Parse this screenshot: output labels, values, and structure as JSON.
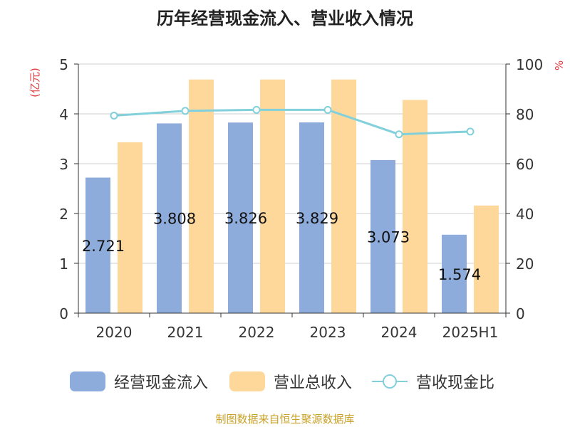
{
  "title": "历年经营现金流入、营业收入情况",
  "source": "制图数据来自恒生聚源数据库",
  "colors": {
    "bar1": "#8eacdb",
    "bar2": "#fdd89a",
    "line": "#82d0dc",
    "left_unit": "#e03c3c",
    "right_unit": "#e03c3c",
    "source": "#c9a227"
  },
  "legend": [
    "经营现金流入",
    "营业总收入",
    "营收现金比"
  ],
  "chart_data": {
    "type": "bar",
    "categories": [
      "2020",
      "2021",
      "2022",
      "2023",
      "2024",
      "2025H1"
    ],
    "series": [
      {
        "name": "经营现金流入",
        "type": "bar",
        "axis": "left",
        "values": [
          2.721,
          3.808,
          3.826,
          3.829,
          3.073,
          1.574
        ],
        "labels": [
          "2.721",
          "3.808",
          "3.826",
          "3.829",
          "3.073",
          "1.574"
        ]
      },
      {
        "name": "营业总收入",
        "type": "bar",
        "axis": "left",
        "values": [
          3.43,
          4.69,
          4.69,
          4.69,
          4.28,
          2.16
        ]
      },
      {
        "name": "营收现金比",
        "type": "line",
        "axis": "right",
        "values": [
          79.3,
          81.2,
          81.6,
          81.6,
          71.8,
          72.9
        ]
      }
    ],
    "left_axis": {
      "label": "(亿元)",
      "ylim": [
        0,
        5
      ],
      "ticks": [
        "0",
        "1",
        "2",
        "3",
        "4",
        "5"
      ]
    },
    "right_axis": {
      "label": "%",
      "ylim": [
        0,
        100
      ],
      "ticks": [
        "0",
        "20",
        "40",
        "60",
        "80",
        "100"
      ]
    },
    "grid": true,
    "legend_position": "bottom"
  }
}
